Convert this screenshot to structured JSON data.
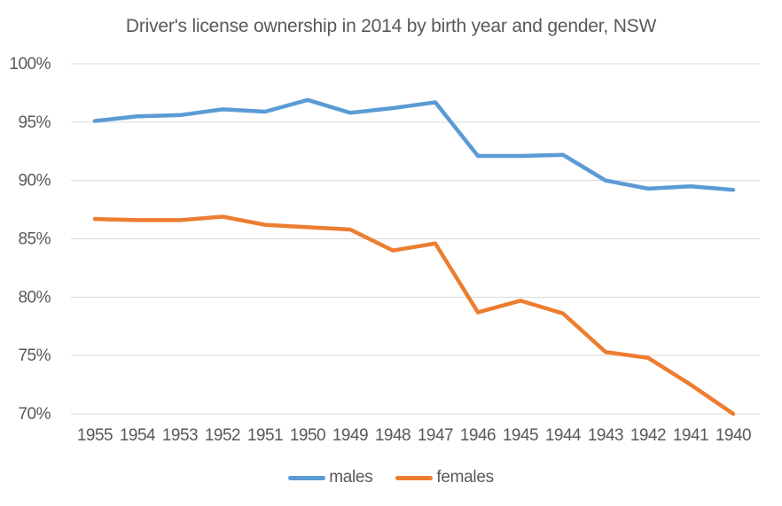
{
  "colors": {
    "background": "#ffffff",
    "text": "#595959",
    "gridline": "#d9d9d9",
    "males_line": "#5b9bd5",
    "females_line": "#ed7d31"
  },
  "chart_data": {
    "type": "line",
    "title": "Driver's license ownership in 2014 by birth year and gender, NSW",
    "categories": [
      "1955",
      "1954",
      "1953",
      "1952",
      "1951",
      "1950",
      "1949",
      "1948",
      "1947",
      "1946",
      "1945",
      "1944",
      "1943",
      "1942",
      "1941",
      "1940"
    ],
    "series": [
      {
        "name": "males",
        "color": "#5b9bd5",
        "values": [
          95.1,
          95.5,
          95.6,
          96.1,
          95.9,
          96.9,
          95.8,
          96.2,
          96.7,
          92.1,
          92.1,
          92.2,
          90.0,
          89.3,
          89.5,
          89.2
        ]
      },
      {
        "name": "females",
        "color": "#ed7d31",
        "values": [
          86.7,
          86.6,
          86.6,
          86.9,
          86.2,
          86.0,
          85.8,
          84.0,
          84.6,
          78.7,
          79.7,
          78.6,
          75.3,
          74.8,
          72.5,
          70.0
        ]
      }
    ],
    "xlabel": "",
    "ylabel": "",
    "ylim": [
      70,
      100
    ],
    "y_ticks": [
      100,
      95,
      90,
      85,
      80,
      75,
      70
    ],
    "y_tick_labels": [
      "100%",
      "95%",
      "90%",
      "85%",
      "80%",
      "75%",
      "70%"
    ],
    "grid": "horizontal",
    "legend_position": "bottom"
  }
}
